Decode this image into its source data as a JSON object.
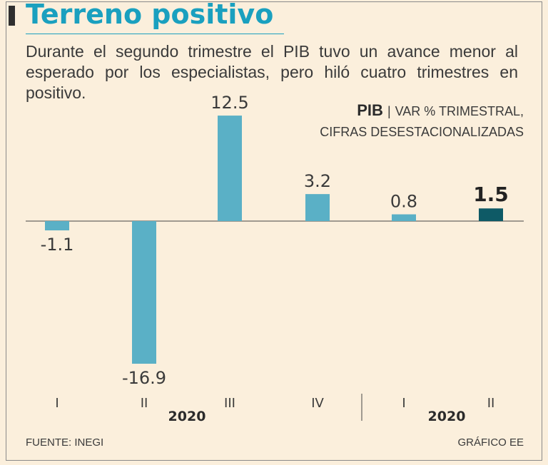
{
  "header": {
    "title": "Terreno positivo",
    "subtitle": "Durante el segundo trimestre el PIB tuvo un avance menor al esperado por los especialistas, pero hiló cuatro trimestres en positivo."
  },
  "legend": {
    "indicator": "PIB",
    "separator": "|",
    "unit": "VAR % TRIMESTRAL,",
    "note": "CIFRAS DESESTACIONALIZADAS"
  },
  "chart_data": {
    "type": "bar",
    "title": "Terreno positivo",
    "categories": [
      "I",
      "II",
      "III",
      "IV",
      "I",
      "II"
    ],
    "values": [
      -1.1,
      -16.9,
      12.5,
      3.2,
      0.8,
      1.5
    ],
    "value_labels": [
      "-1.1",
      "-16.9",
      "12.5",
      "3.2",
      "0.8",
      "1.5"
    ],
    "year_groups": [
      {
        "label": "2020",
        "categories": [
          "I",
          "II",
          "III",
          "IV"
        ]
      },
      {
        "label": "2020",
        "categories": [
          "I",
          "II"
        ]
      }
    ],
    "ylim": [
      -16.9,
      12.5
    ],
    "xlabel": "",
    "ylabel": "VAR % TRIMESTRAL",
    "highlight_index": 5,
    "colors": {
      "bar": "#5ab0c6",
      "highlight": "#0e5a66",
      "axis": "#444444"
    }
  },
  "footer": {
    "source": "FUENTE: INEGI",
    "credit": "GRÁFICO EE"
  }
}
